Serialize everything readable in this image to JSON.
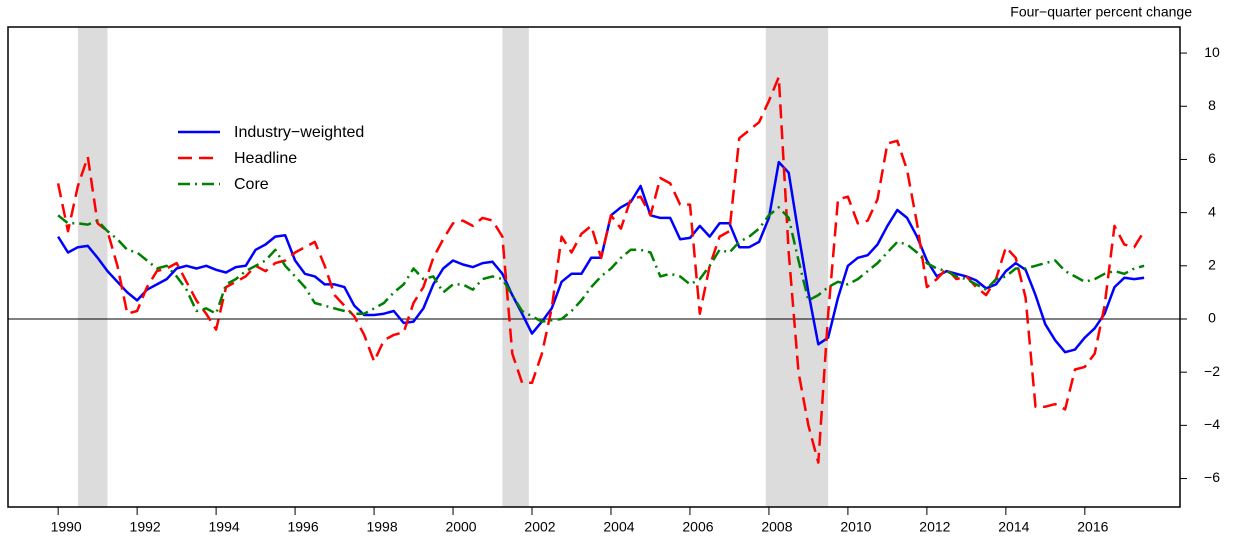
{
  "chart_data": {
    "type": "line",
    "y_axis_label": "Four−quarter percent change",
    "x": [
      1990,
      1990.25,
      1990.5,
      1990.75,
      1991,
      1991.25,
      1991.5,
      1991.75,
      1992,
      1992.25,
      1992.5,
      1992.75,
      1993,
      1993.25,
      1993.5,
      1993.75,
      1994,
      1994.25,
      1994.5,
      1994.75,
      1995,
      1995.25,
      1995.5,
      1995.75,
      1996,
      1996.25,
      1996.5,
      1996.75,
      1997,
      1997.25,
      1997.5,
      1997.75,
      1998,
      1998.25,
      1998.5,
      1998.75,
      1999,
      1999.25,
      1999.5,
      1999.75,
      2000,
      2000.25,
      2000.5,
      2000.75,
      2001,
      2001.25,
      2001.5,
      2001.75,
      2002,
      2002.25,
      2002.5,
      2002.75,
      2003,
      2003.25,
      2003.5,
      2003.75,
      2004,
      2004.25,
      2004.5,
      2004.75,
      2005,
      2005.25,
      2005.5,
      2005.75,
      2006,
      2006.25,
      2006.5,
      2006.75,
      2007,
      2007.25,
      2007.5,
      2007.75,
      2008,
      2008.25,
      2008.5,
      2008.75,
      2009,
      2009.25,
      2009.5,
      2009.75,
      2010,
      2010.25,
      2010.5,
      2010.75,
      2011,
      2011.25,
      2011.5,
      2011.75,
      2012,
      2012.25,
      2012.5,
      2012.75,
      2013,
      2013.25,
      2013.5,
      2013.75,
      2014,
      2014.25,
      2014.5,
      2014.75,
      2015,
      2015.25,
      2015.5,
      2015.75,
      2016,
      2016.25,
      2016.5,
      2016.75,
      2017,
      2017.25,
      2017.5
    ],
    "series": [
      {
        "name": "Industry−weighted",
        "color": "#0000ff",
        "linestyle": "solid",
        "values": [
          3.1,
          2.5,
          2.7,
          2.75,
          2.3,
          1.8,
          1.4,
          1.0,
          0.7,
          1.1,
          1.3,
          1.5,
          1.9,
          2.0,
          1.9,
          2.0,
          1.85,
          1.75,
          1.95,
          2.0,
          2.6,
          2.8,
          3.1,
          3.15,
          2.2,
          1.7,
          1.6,
          1.3,
          1.3,
          1.2,
          0.5,
          0.15,
          0.15,
          0.2,
          0.3,
          -0.15,
          -0.1,
          0.4,
          1.3,
          1.9,
          2.2,
          2.05,
          1.95,
          2.1,
          2.15,
          1.7,
          0.9,
          0.2,
          -0.55,
          -0.1,
          0.4,
          1.4,
          1.7,
          1.7,
          2.3,
          2.3,
          3.9,
          4.2,
          4.4,
          5.0,
          3.9,
          3.8,
          3.8,
          3.0,
          3.05,
          3.5,
          3.1,
          3.6,
          3.6,
          2.7,
          2.7,
          2.9,
          3.8,
          5.9,
          5.5,
          3.2,
          1.0,
          -0.95,
          -0.7,
          0.8,
          2.0,
          2.3,
          2.4,
          2.8,
          3.5,
          4.1,
          3.8,
          3.1,
          2.2,
          1.6,
          1.8,
          1.7,
          1.6,
          1.45,
          1.15,
          1.3,
          1.8,
          2.1,
          1.85,
          0.9,
          -0.2,
          -0.8,
          -1.25,
          -1.15,
          -0.7,
          -0.35,
          0.2,
          1.2,
          1.55,
          1.5,
          1.55
        ]
      },
      {
        "name": "Headline",
        "color": "#ff0000",
        "linestyle": "dashed",
        "values": [
          5.1,
          3.3,
          5.0,
          6.1,
          3.6,
          3.3,
          2.0,
          0.2,
          0.3,
          1.2,
          1.8,
          1.9,
          2.1,
          1.4,
          0.7,
          0.2,
          -0.4,
          1.2,
          1.4,
          1.6,
          2.0,
          1.8,
          2.1,
          2.2,
          2.5,
          2.7,
          2.9,
          2.0,
          0.9,
          0.5,
          0.1,
          -0.6,
          -1.6,
          -0.8,
          -0.6,
          -0.5,
          0.6,
          1.2,
          2.3,
          3.0,
          3.6,
          3.7,
          3.5,
          3.8,
          3.7,
          3.1,
          -1.3,
          -2.4,
          -2.4,
          -1.3,
          0.4,
          3.1,
          2.5,
          3.2,
          3.5,
          2.3,
          3.9,
          3.4,
          4.5,
          4.6,
          3.9,
          5.3,
          5.1,
          4.3,
          4.3,
          0.2,
          2.0,
          3.1,
          3.3,
          6.8,
          7.1,
          7.4,
          8.2,
          9.1,
          2.5,
          -2.0,
          -4.0,
          -5.4,
          0.2,
          4.5,
          4.6,
          3.6,
          3.7,
          4.5,
          6.6,
          6.7,
          5.6,
          3.6,
          1.2,
          1.5,
          1.9,
          1.5,
          1.6,
          1.2,
          0.9,
          1.5,
          2.7,
          2.3,
          0.8,
          -3.3,
          -3.3,
          -3.2,
          -3.4,
          -1.9,
          -1.8,
          -1.3,
          0.5,
          3.5,
          2.8,
          2.7,
          3.3
        ]
      },
      {
        "name": "Core",
        "color": "#008000",
        "linestyle": "dashdot",
        "values": [
          3.9,
          3.6,
          3.6,
          3.55,
          3.7,
          3.3,
          3.0,
          2.6,
          2.5,
          2.2,
          1.9,
          2.0,
          1.6,
          1.1,
          0.3,
          0.4,
          0.2,
          1.3,
          1.5,
          1.8,
          2.0,
          2.2,
          2.6,
          2.0,
          1.6,
          1.2,
          0.6,
          0.5,
          0.4,
          0.3,
          0.2,
          0.2,
          0.4,
          0.6,
          1.0,
          1.3,
          1.9,
          1.5,
          1.6,
          1.0,
          1.3,
          1.3,
          1.1,
          1.5,
          1.6,
          1.5,
          0.9,
          0.3,
          0.1,
          -0.1,
          -0.05,
          0.0,
          0.3,
          0.7,
          1.2,
          1.6,
          1.9,
          2.3,
          2.6,
          2.6,
          2.5,
          1.6,
          1.7,
          1.6,
          1.3,
          1.5,
          2.0,
          2.6,
          2.5,
          2.9,
          3.1,
          3.4,
          3.9,
          4.2,
          3.8,
          2.2,
          0.7,
          0.9,
          1.2,
          1.4,
          1.3,
          1.5,
          1.8,
          2.1,
          2.5,
          2.9,
          2.8,
          2.5,
          2.1,
          1.9,
          1.8,
          1.6,
          1.5,
          1.3,
          1.1,
          1.5,
          1.6,
          1.9,
          1.9,
          2.0,
          2.1,
          2.2,
          1.8,
          1.6,
          1.4,
          1.5,
          1.7,
          1.8,
          1.7,
          1.9,
          2.0
        ]
      }
    ],
    "shaded_periods": [
      [
        1990.5,
        1991.25
      ],
      [
        2001.25,
        2001.92
      ],
      [
        2007.92,
        2009.5
      ]
    ],
    "shade_color": "#dcdcdc",
    "xlim": [
      1988.73,
      2018.41
    ],
    "xticks": [
      1990,
      1992,
      1994,
      1996,
      1998,
      2000,
      2002,
      2004,
      2006,
      2008,
      2010,
      2012,
      2014,
      2016
    ],
    "ylim": [
      -7.07,
      10.98
    ],
    "yticks": [
      {
        "value": -6,
        "label": "−6"
      },
      {
        "value": -4,
        "label": "−4"
      },
      {
        "value": -2,
        "label": "−2"
      },
      0,
      2,
      4,
      6,
      8,
      10
    ],
    "zero_line": true,
    "y_axis_side": "right",
    "legend_position": "upper left"
  }
}
